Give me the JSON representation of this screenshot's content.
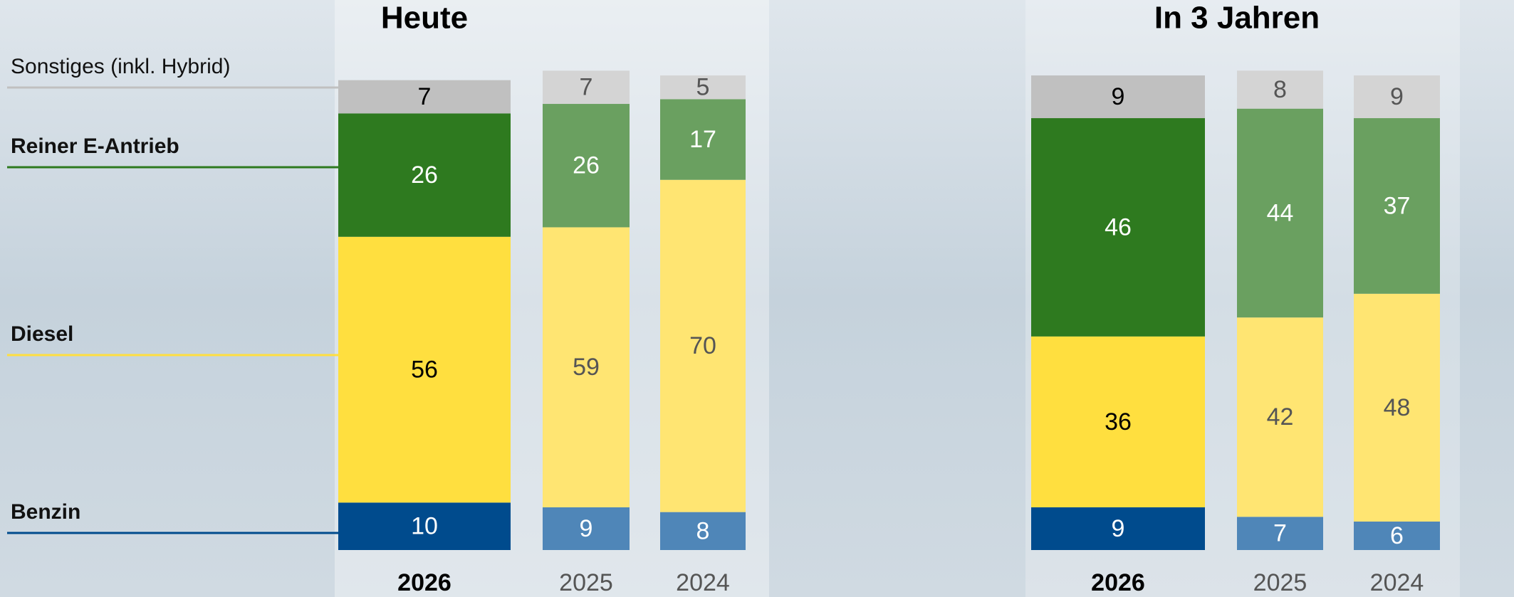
{
  "chart_data": [
    {
      "type": "stacked_bar",
      "title": "Heute",
      "categories": [
        "2026",
        "2025",
        "2024"
      ],
      "highlight": "2026",
      "ylim": [
        0,
        100
      ],
      "series": [
        {
          "name": "Benzin",
          "color": "#004b8d",
          "light_color": "#4f86b8",
          "values": [
            10,
            9,
            8
          ]
        },
        {
          "name": "Diesel",
          "color": "#ffdf3f",
          "light_color": "#ffe572",
          "values": [
            56,
            59,
            70
          ]
        },
        {
          "name": "Reiner E-Antrieb",
          "color": "#2e7a1f",
          "light_color": "#6aa060",
          "values": [
            26,
            26,
            17
          ]
        },
        {
          "name": "Sonstiges (inkl. Hybrid)",
          "color": "#c0c0c0",
          "light_color": "#d4d4d4",
          "values": [
            7,
            7,
            5
          ]
        }
      ]
    },
    {
      "type": "stacked_bar",
      "title": "In 3 Jahren",
      "categories": [
        "2026",
        "2025",
        "2024"
      ],
      "highlight": "2026",
      "ylim": [
        0,
        100
      ],
      "series": [
        {
          "color": "#004b8d",
          "light_color": "#4f86b8",
          "values": [
            9,
            7,
            6
          ]
        },
        {
          "color": "#ffdf3f",
          "light_color": "#ffe572",
          "values": [
            36,
            42,
            48
          ]
        },
        {
          "color": "#2e7a1f",
          "light_color": "#6aa060",
          "values": [
            46,
            44,
            37
          ]
        },
        {
          "color": "#c0c0c0",
          "light_color": "#d4d4d4",
          "values": [
            9,
            8,
            9
          ]
        }
      ]
    }
  ]
}
